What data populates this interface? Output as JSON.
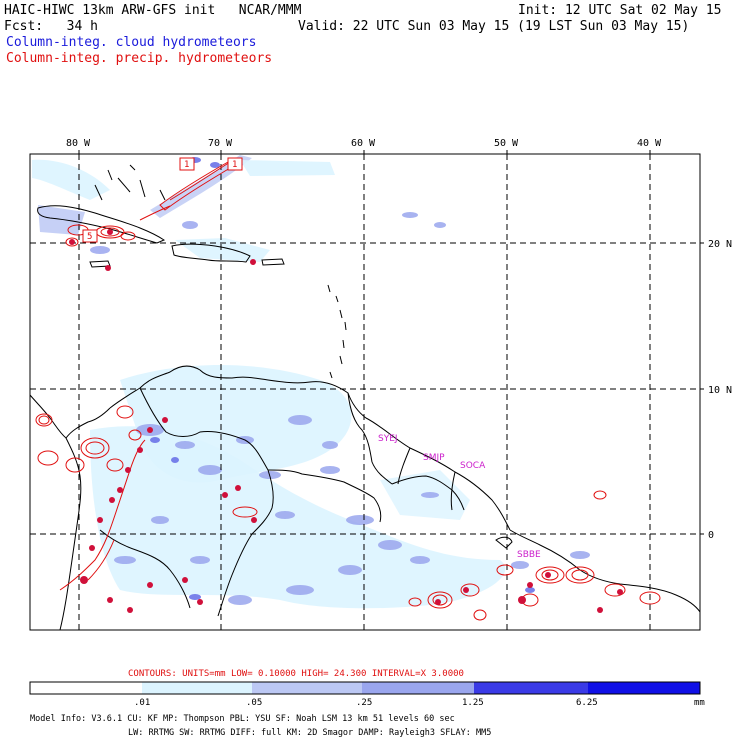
{
  "header": {
    "model_title": "HAIC-HIWC 13km ARW-GFS init   NCAR/MMM",
    "init_time": "Init: 12 UTC Sat 02 May 15",
    "forecast_hour": "Fcst:   34 h",
    "valid_time": "Valid: 22 UTC Sun 03 May 15 (19 LST Sun 03 May 15)",
    "field_cloud": "Column-integ. cloud hydrometeors",
    "field_precip": "Column-integ. precip. hydrometeors"
  },
  "map": {
    "lon_labels": [
      "80 W",
      "70 W",
      "60 W",
      "50 W",
      "40 W"
    ],
    "lat_labels": [
      "20 N",
      "10 N",
      "0"
    ],
    "station_labels": [
      "SYEJ",
      "SMJP",
      "SOCA",
      "SBBE"
    ],
    "box_labels": [
      "1",
      "1",
      "5"
    ],
    "colors": {
      "coast": "#000000",
      "grid": "#000000",
      "cloud_fill_light": "#dbeeff",
      "cloud_fill_mid": "#aab4f0",
      "cloud_fill_dark": "#7f86ea",
      "precip_contour": "#e01010",
      "precip_core": "#d0103a",
      "station_label": "#cc22cc"
    }
  },
  "contour_info": "CONTOURS:  UNITS=mm  LOW= 0.10000      HIGH=  24.300      INTERVAL=X  3.0000",
  "colorbar": {
    "tick_labels": [
      ".01",
      ".05",
      ".25",
      "1.25",
      "6.25"
    ],
    "units": "mm",
    "colors": [
      "#ffffff",
      "#dcf4ff",
      "#bcc8f4",
      "#9aa6ee",
      "#6c74e8",
      "#3a3ae6",
      "#1010e6"
    ]
  },
  "footer": {
    "line1": "Model Info: V3.6.1    CU: KF      MP: Thompson     PBL: YSU       SF: Noah LSM    13 km   51 levels   60 sec",
    "line2": "LW: RRTMG   SW: RRTMG  DIFF: full    KM: 2D Smagor DAMP: Rayleigh3  SFLAY: MM5"
  }
}
